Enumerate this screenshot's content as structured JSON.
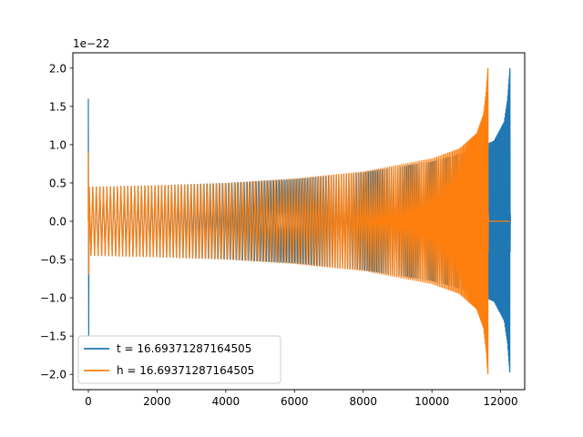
{
  "chart_data": {
    "type": "line",
    "title": "",
    "xlabel": "",
    "ylabel": "",
    "y_offset_label": "1e−22",
    "xlim": [
      -450,
      12700
    ],
    "ylim": [
      -2.2,
      2.2
    ],
    "xticks": [
      0,
      2000,
      4000,
      6000,
      8000,
      10000,
      12000
    ],
    "xtick_labels": [
      "0",
      "2000",
      "4000",
      "6000",
      "8000",
      "10000",
      "12000"
    ],
    "yticks": [
      -2.0,
      -1.5,
      -1.0,
      -0.5,
      0.0,
      0.5,
      1.0,
      1.5,
      2.0
    ],
    "ytick_labels": [
      "−2.0",
      "−1.5",
      "−1.0",
      "−0.5",
      "0.0",
      "0.5",
      "1.0",
      "1.5",
      "2.0"
    ],
    "grid": false,
    "legend_position": "lower-left",
    "series": [
      {
        "name": "t = 16.69371287164505",
        "color": "#1f77b4",
        "style": "chirp oscillation",
        "x_range": [
          0,
          12270
        ],
        "x_merger": 12270,
        "early_spike": {
          "x": 0,
          "max": 1.6,
          "min": -1.5
        },
        "envelope_x": [
          0,
          2000,
          4000,
          6000,
          8000,
          10000,
          11000,
          11800,
          12100,
          12200,
          12270
        ],
        "envelope_y": [
          0.45,
          0.47,
          0.5,
          0.55,
          0.64,
          0.78,
          0.9,
          1.05,
          1.3,
          1.6,
          2.0
        ],
        "min_peak": -1.97
      },
      {
        "name": "h = 16.69371287164505",
        "color": "#ff7f0e",
        "style": "chirp oscillation",
        "x_range": [
          0,
          11630
        ],
        "x_merger": 11630,
        "zero_tail_until": 12270,
        "early_spike": {
          "x": 0,
          "max": 0.9,
          "min": -0.7
        },
        "envelope_x": [
          0,
          2000,
          4000,
          6000,
          8000,
          10000,
          10800,
          11300,
          11500,
          11580,
          11630
        ],
        "envelope_y": [
          0.45,
          0.47,
          0.5,
          0.56,
          0.65,
          0.82,
          0.95,
          1.15,
          1.4,
          1.7,
          2.0
        ],
        "min_peak": -1.97
      }
    ]
  }
}
